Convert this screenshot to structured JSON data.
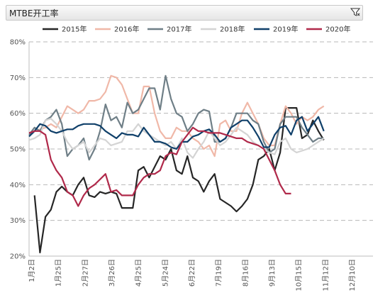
{
  "header": {
    "title": "MTBE开工率",
    "filter_icon": "filter-icon"
  },
  "chart_data": {
    "type": "line",
    "title": "MTBE开工率",
    "xlabel": "",
    "ylabel": "",
    "ylim": [
      20,
      80
    ],
    "yticks": [
      "20%",
      "30%",
      "40%",
      "50%",
      "60%",
      "70%",
      "80%"
    ],
    "x_tick_labels": [
      "1月2日",
      "1月25日",
      "2月27日",
      "3月26日",
      "4月25日",
      "5月24日",
      "6月22日",
      "7月19日",
      "8月16日",
      "9月13日",
      "10月15日",
      "11月12日",
      "12月10日"
    ],
    "x_count": 64,
    "grid": true,
    "legend": "top",
    "series": [
      {
        "name": "2015年",
        "color": "#262626",
        "values": [
          null,
          37,
          21,
          31,
          33,
          38,
          39.5,
          38,
          37,
          40,
          42,
          37,
          36.5,
          38,
          37.5,
          38,
          37.5,
          33.5,
          33.5,
          33.5,
          44,
          45,
          42,
          45,
          48,
          47,
          50,
          44,
          43,
          48,
          42,
          41,
          38,
          41,
          43,
          36,
          35,
          34,
          32.5,
          34,
          36,
          40,
          47,
          48,
          50,
          44,
          49,
          61.5,
          61.5,
          61.5,
          53,
          54,
          58,
          55,
          52.5,
          null,
          null,
          null,
          null,
          null,
          null,
          null,
          null,
          null
        ]
      },
      {
        "name": "2016年",
        "color": "#f0b8a8",
        "values": [
          54,
          55,
          55.5,
          56,
          57,
          56,
          59,
          62,
          61,
          60,
          61,
          63.5,
          63.5,
          64,
          66,
          70.5,
          70,
          68,
          64,
          60,
          60,
          67.5,
          67.5,
          60,
          55,
          53,
          53,
          56,
          55,
          55,
          53,
          52,
          50,
          51,
          48,
          57,
          58,
          55,
          55,
          60,
          63,
          60,
          57,
          53,
          51,
          51,
          57,
          62,
          60,
          57,
          59,
          58,
          59,
          61,
          62,
          null,
          null,
          null,
          null,
          null,
          null,
          null,
          null,
          null
        ]
      },
      {
        "name": "2017年",
        "color": "#6f7f87",
        "values": [
          54,
          56,
          55,
          58,
          59,
          61,
          57,
          48,
          50,
          51,
          53,
          47,
          50,
          55,
          62.5,
          58,
          59,
          56,
          63,
          60,
          61,
          64,
          67,
          67,
          61,
          70.5,
          64,
          60,
          59,
          55,
          57,
          60,
          61,
          60.5,
          52,
          52,
          53,
          56,
          60,
          60,
          60,
          58,
          57,
          52,
          49,
          50,
          57,
          59,
          59,
          59,
          56,
          54,
          52,
          53,
          53,
          null,
          null,
          null,
          null,
          null,
          null,
          null,
          null,
          null
        ]
      },
      {
        "name": "2018年",
        "color": "#d4d4d4",
        "values": [
          52.5,
          53,
          54,
          58,
          58.5,
          57,
          55,
          52,
          50,
          51,
          52,
          49,
          51,
          53,
          52.5,
          51,
          51.5,
          52,
          55,
          55,
          57,
          55,
          54,
          53,
          52,
          51,
          52,
          50,
          53,
          49,
          47.5,
          50,
          52,
          55,
          53,
          51,
          52,
          54,
          56,
          55,
          54,
          52,
          51,
          50,
          49,
          48.5,
          52,
          53,
          50,
          49,
          49.5,
          50,
          51,
          52,
          53,
          null,
          null,
          null,
          null,
          null,
          null,
          null,
          null,
          null
        ]
      },
      {
        "name": "2019年",
        "color": "#10406a",
        "values": [
          53.5,
          55,
          57,
          56.5,
          55,
          54.5,
          55,
          55.5,
          55.5,
          56.5,
          57,
          57,
          57,
          56.5,
          55,
          54,
          53,
          54.5,
          54,
          54,
          53.5,
          56,
          54,
          52,
          52,
          51.5,
          50.5,
          50,
          52,
          52,
          53.5,
          54,
          55,
          55.5,
          54,
          52,
          53,
          56,
          57,
          58,
          58,
          56,
          53.5,
          50.5,
          50.5,
          54,
          56,
          56.5,
          54,
          58,
          59,
          55,
          57,
          59,
          55,
          null,
          null,
          null,
          null,
          null,
          null,
          null,
          null,
          null
        ]
      },
      {
        "name": "2020年",
        "color": "#b0294a",
        "values": [
          54.5,
          55,
          55,
          54,
          47,
          44,
          42,
          38,
          37,
          34,
          37,
          39,
          40,
          41.5,
          43,
          38,
          38.5,
          37,
          37,
          37,
          40,
          42,
          43,
          43,
          44,
          48,
          49,
          48.5,
          52,
          54,
          56,
          55,
          55,
          54.5,
          54.5,
          54.5,
          54,
          53.5,
          53,
          53,
          52,
          51.5,
          51,
          50,
          47,
          44,
          40,
          37.5,
          37.5,
          null,
          null,
          null,
          null,
          null,
          null,
          null,
          null,
          null,
          null,
          null,
          null,
          null,
          null,
          null
        ]
      }
    ]
  }
}
